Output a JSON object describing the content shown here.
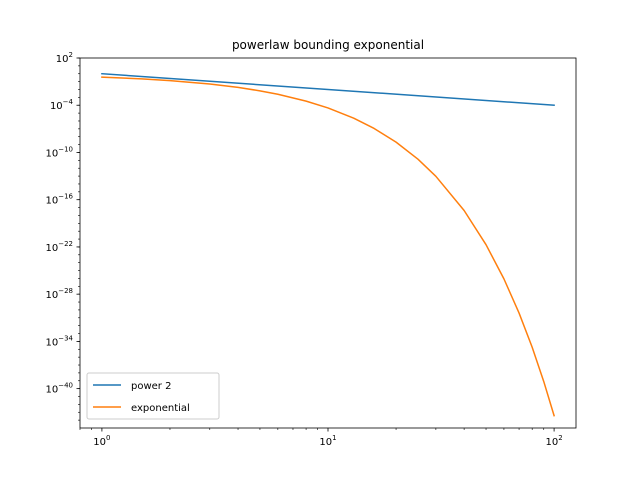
{
  "chart_data": {
    "type": "line",
    "title": "powerlaw bounding exponential",
    "xlabel": "",
    "ylabel": "",
    "xscale": "log",
    "yscale": "log",
    "xlim": [
      0.8,
      125
    ],
    "ylim": [
      1e-45,
      100
    ],
    "grid": false,
    "legend_position": "lower-left",
    "colors": {
      "power": "#1f77b4",
      "exponential": "#ff7f0e"
    },
    "xticks": [
      {
        "value": 1,
        "base": "10",
        "exp": "0"
      },
      {
        "value": 10,
        "base": "10",
        "exp": "1"
      },
      {
        "value": 100,
        "base": "10",
        "exp": "2"
      }
    ],
    "yticks": [
      {
        "value": 100,
        "base": "10",
        "exp": "2"
      },
      {
        "value": 0.0001,
        "base": "10",
        "exp": "−4"
      },
      {
        "value": 1e-10,
        "base": "10",
        "exp": "−10"
      },
      {
        "value": 1e-16,
        "base": "10",
        "exp": "−16"
      },
      {
        "value": 1e-22,
        "base": "10",
        "exp": "−22"
      },
      {
        "value": 1e-28,
        "base": "10",
        "exp": "−28"
      },
      {
        "value": 1e-34,
        "base": "10",
        "exp": "−34"
      },
      {
        "value": 1e-40,
        "base": "10",
        "exp": "−40"
      }
    ],
    "series": [
      {
        "name": "power 2",
        "color": "#1f77b4",
        "x": [
          1,
          100
        ],
        "y": [
          1,
          0.0001
        ]
      },
      {
        "name": "exponential",
        "color": "#ff7f0e",
        "x": [
          1,
          1.5,
          2,
          3,
          4,
          5,
          6,
          8,
          10,
          13,
          16,
          20,
          25,
          30,
          40,
          50,
          60,
          70,
          80,
          90,
          100
        ],
        "y": [
          0.3679,
          0.2231,
          0.1353,
          0.04979,
          0.01832,
          0.006738,
          0.002479,
          0.0003355,
          4.54e-05,
          2.26e-06,
          1.125e-07,
          2.061e-09,
          1.389e-11,
          9.358e-14,
          4.248e-18,
          1.929e-22,
          8.757e-27,
          3.976e-31,
          1.805e-35,
          8.194e-40,
          3.72e-44
        ]
      }
    ]
  }
}
